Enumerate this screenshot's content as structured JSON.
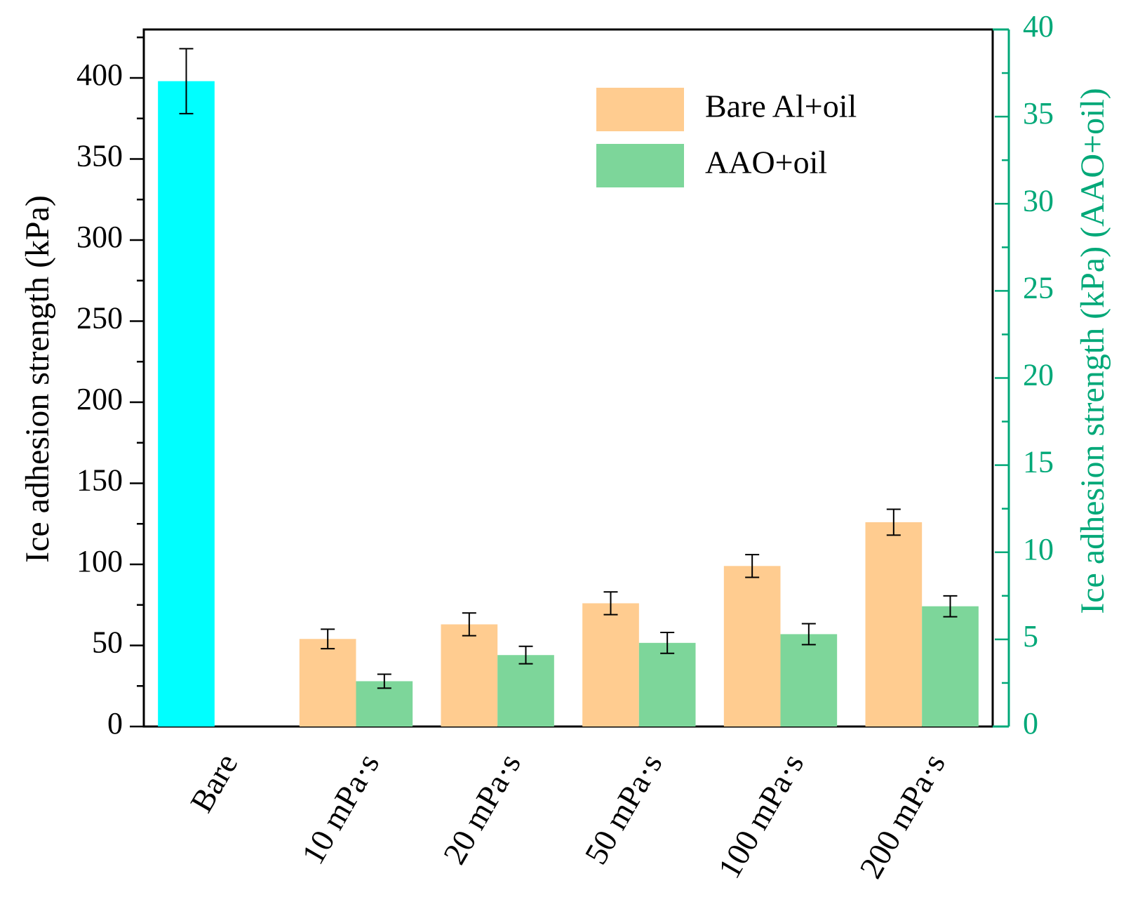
{
  "chart_data": {
    "type": "bar",
    "title": "",
    "categories": [
      "Bare",
      "10 mPa·s",
      "20 mPa·s",
      "50 mPa·s",
      "100 mPa·s",
      "200 mPa·s"
    ],
    "xlabel": "",
    "ylabel_left": "Ice adhesion strength (kPa)",
    "ylabel_right": "Ice adhesion strength (kPa) (AAO+oil)",
    "ylim_left": [
      0,
      430
    ],
    "ylim_right": [
      0,
      40
    ],
    "yticks_left": [
      0,
      50,
      100,
      150,
      200,
      250,
      300,
      350,
      400
    ],
    "yticks_right": [
      0,
      5,
      10,
      15,
      20,
      25,
      30,
      35,
      40
    ],
    "grid": false,
    "legend_position": "top-right",
    "series": [
      {
        "name": "Bare",
        "axis": "left",
        "color": "#00FFFF",
        "in_legend": false,
        "values": [
          398,
          null,
          null,
          null,
          null,
          null
        ],
        "errors": [
          20,
          null,
          null,
          null,
          null,
          null
        ]
      },
      {
        "name": "Bare Al+oil",
        "axis": "left",
        "color": "#FFCC90",
        "in_legend": true,
        "values": [
          null,
          54,
          63,
          76,
          99,
          126
        ],
        "errors": [
          null,
          6,
          7,
          7,
          7,
          8
        ]
      },
      {
        "name": "AAO+oil",
        "axis": "right",
        "color": "#7DD69A",
        "in_legend": true,
        "values": [
          null,
          2.6,
          4.1,
          4.8,
          5.3,
          6.9
        ],
        "errors": [
          null,
          0.4,
          0.5,
          0.6,
          0.6,
          0.6
        ]
      }
    ],
    "colors": {
      "axis": "#000000",
      "right_axis": "#00A878"
    }
  }
}
